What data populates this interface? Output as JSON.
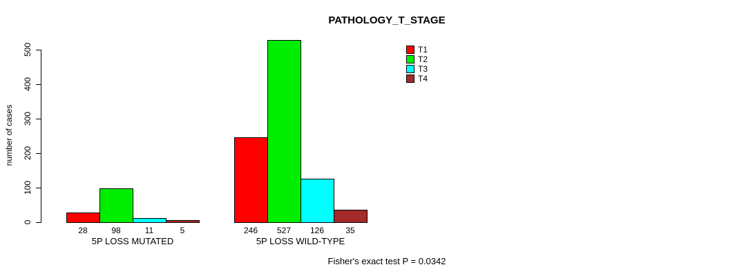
{
  "background_color": "#FFFFFF",
  "chart_data": {
    "type": "bar",
    "title": "PATHOLOGY_T_STAGE",
    "xlabel": "",
    "ylabel": "number of cases",
    "categories": [
      "5P LOSS MUTATED",
      "5P LOSS WILD-TYPE"
    ],
    "series": [
      {
        "name": "T1",
        "color": "#FF0000",
        "values": [
          28,
          246
        ]
      },
      {
        "name": "T2",
        "color": "#00EE00",
        "values": [
          98,
          527
        ]
      },
      {
        "name": "T3",
        "color": "#00FFFF",
        "values": [
          11,
          126
        ]
      },
      {
        "name": "T4",
        "color": "#A52A2A",
        "values": [
          5,
          35
        ]
      }
    ],
    "yticks": [
      0,
      100,
      200,
      300,
      400,
      500
    ],
    "ylim": [
      0,
      527
    ],
    "grid": false,
    "bar_value_labels": true,
    "legend_position": "top-right",
    "annotation": "Fisher's exact test P = 0.0342"
  }
}
